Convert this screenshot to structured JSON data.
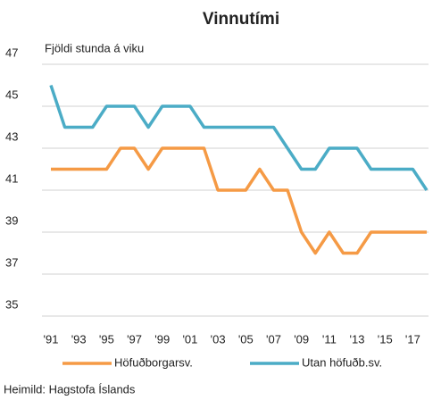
{
  "chart_data": {
    "type": "line",
    "title": "Vinnutími",
    "y_label": "Fjöldi stunda á viku",
    "source": "Heimild: Hagstofa Íslands",
    "categories": [
      "'91",
      null,
      "'93",
      null,
      "'95",
      null,
      "'97",
      null,
      "'99",
      null,
      "'01",
      null,
      "'03",
      null,
      "'05",
      null,
      "'07",
      null,
      "'09",
      null,
      "'11",
      null,
      "'13",
      null,
      "'15",
      null,
      "'17",
      null
    ],
    "series": [
      {
        "name": "Höfuðborgarsv.",
        "color": "#f59a45",
        "values": [
          42,
          42,
          42,
          42,
          42,
          43,
          43,
          42,
          43,
          43,
          43,
          43,
          41,
          41,
          41,
          42,
          41,
          41,
          39,
          38,
          39,
          38,
          38,
          39,
          39,
          39,
          39,
          39
        ]
      },
      {
        "name": "Utan höfuðb.sv.",
        "color": "#4bacc6",
        "values": [
          46,
          44,
          44,
          44,
          45,
          45,
          45,
          44,
          45,
          45,
          45,
          44,
          44,
          44,
          44,
          44,
          44,
          43,
          42,
          42,
          43,
          43,
          43,
          42,
          42,
          42,
          42,
          41
        ]
      }
    ],
    "ylim": [
      35,
      47
    ],
    "yticks": [
      35,
      37,
      39,
      41,
      43,
      45,
      47
    ],
    "grid": true
  }
}
